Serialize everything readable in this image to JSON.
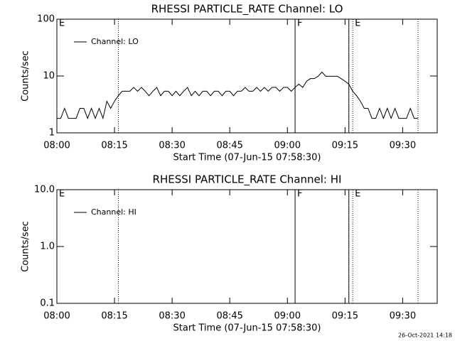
{
  "chart_data": [
    {
      "type": "line",
      "title": "RHESSI PARTICLE_RATE Channel: LO",
      "x_label": "Start Time (07-Jun-15 07:58:30)",
      "y_label": "Counts/sec",
      "yscale": "log",
      "ylim": [
        1,
        100
      ],
      "yticks": [
        1,
        10,
        100
      ],
      "xlim": [
        "08:00",
        "09:39"
      ],
      "xticks": [
        "08:00",
        "08:15",
        "08:30",
        "08:45",
        "09:00",
        "09:15",
        "09:30"
      ],
      "legend": "upper left",
      "markers": [
        {
          "x": "08:00",
          "label": "E"
        },
        {
          "x": "08:16",
          "style": "dotted"
        },
        {
          "x": "09:02",
          "style": "solid",
          "label": "F"
        },
        {
          "x": "09:16",
          "style": "solid"
        },
        {
          "x": "09:17",
          "style": "dotted",
          "label": "E"
        },
        {
          "x": "09:34",
          "style": "dotted"
        }
      ],
      "x": [
        "08:00",
        "08:01",
        "08:02",
        "08:03",
        "08:04",
        "08:05",
        "08:06",
        "08:07",
        "08:08",
        "08:09",
        "08:10",
        "08:11",
        "08:12",
        "08:13",
        "08:14",
        "08:15",
        "08:16",
        "08:17",
        "08:18",
        "08:19",
        "08:20",
        "08:21",
        "08:22",
        "08:23",
        "08:24",
        "08:25",
        "08:26",
        "08:27",
        "08:28",
        "08:29",
        "08:30",
        "08:31",
        "08:32",
        "08:33",
        "08:34",
        "08:35",
        "08:36",
        "08:37",
        "08:38",
        "08:39",
        "08:40",
        "08:41",
        "08:42",
        "08:43",
        "08:44",
        "08:45",
        "08:46",
        "08:47",
        "08:48",
        "08:49",
        "08:50",
        "08:51",
        "08:52",
        "08:53",
        "08:54",
        "08:55",
        "08:56",
        "08:57",
        "08:58",
        "08:59",
        "09:00",
        "09:01",
        "09:02",
        "09:03",
        "09:04",
        "09:05",
        "09:06",
        "09:07",
        "09:08",
        "09:09",
        "09:10",
        "09:11",
        "09:12",
        "09:13",
        "09:14",
        "09:15",
        "09:16",
        "09:17",
        "09:18",
        "09:19",
        "09:20",
        "09:21",
        "09:22",
        "09:23",
        "09:24",
        "09:25",
        "09:26",
        "09:27",
        "09:28",
        "09:29",
        "09:30",
        "09:31",
        "09:32",
        "09:33",
        "09:34"
      ],
      "series": [
        {
          "name": "Channel: LO",
          "color": "#000000",
          "values": [
            1.8,
            1.8,
            2.7,
            1.8,
            1.8,
            1.8,
            2.7,
            2.7,
            1.8,
            2.7,
            1.8,
            2.7,
            1.8,
            3.6,
            2.7,
            3.6,
            4.5,
            5.4,
            5.4,
            5.4,
            6.3,
            5.4,
            6.3,
            5.4,
            4.5,
            5.4,
            6.3,
            4.5,
            5.4,
            5.4,
            4.5,
            5.4,
            4.5,
            5.4,
            6.3,
            4.5,
            5.4,
            4.5,
            5.4,
            5.4,
            4.5,
            5.4,
            5.4,
            4.5,
            5.4,
            5.4,
            4.5,
            5.4,
            5.4,
            6.3,
            5.4,
            5.4,
            6.3,
            5.4,
            6.3,
            5.4,
            6.3,
            6.3,
            5.4,
            6.3,
            6.3,
            5.4,
            6.3,
            7.2,
            6.3,
            8.1,
            9.0,
            9.0,
            9.9,
            11.7,
            9.9,
            9.9,
            9.9,
            9.9,
            9.0,
            8.1,
            7.2,
            5.4,
            4.5,
            3.6,
            2.7,
            2.7,
            1.8,
            1.8,
            2.7,
            1.8,
            2.7,
            1.8,
            2.7,
            1.8,
            1.8,
            1.8,
            2.7,
            1.8,
            1.8
          ]
        }
      ]
    },
    {
      "type": "line",
      "title": "RHESSI PARTICLE_RATE Channel: HI",
      "x_label": "Start Time (07-Jun-15 07:58:30)",
      "y_label": "Counts/sec",
      "yscale": "log",
      "ylim": [
        0.1,
        10
      ],
      "yticks": [
        0.1,
        {
          "value": 1,
          "label": "1.0"
        },
        {
          "value": 10,
          "label": "10.0"
        }
      ],
      "xlim": [
        "08:00",
        "09:39"
      ],
      "xticks": [
        "08:00",
        "08:15",
        "08:30",
        "08:45",
        "09:00",
        "09:15",
        "09:30"
      ],
      "legend": "upper left",
      "markers": [
        {
          "x": "08:00",
          "label": "E"
        },
        {
          "x": "08:16",
          "style": "dotted"
        },
        {
          "x": "09:02",
          "style": "solid",
          "label": "F"
        },
        {
          "x": "09:16",
          "style": "solid"
        },
        {
          "x": "09:17",
          "style": "dotted",
          "label": "E"
        },
        {
          "x": "09:34",
          "style": "dotted"
        }
      ],
      "x": [],
      "series": [
        {
          "name": "Channel: HI",
          "color": "#000000",
          "values": []
        }
      ]
    }
  ],
  "footer": "26-Oct-2021 14:18"
}
